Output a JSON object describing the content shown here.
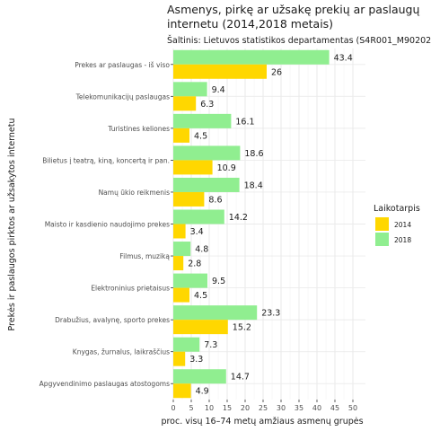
{
  "chart_data": {
    "type": "bar",
    "orientation": "horizontal",
    "title_lines": [
      "Asmenys, pirkę ar užsakę prekių ar paslaugų",
      "internetu (2014,2018 metais)"
    ],
    "subtitle": "Šaltinis: Lietuvos statistikos departamentas (S4R001_M90202",
    "xlabel": "proc. visų 16–74 metų amžiaus asmenų grupės",
    "ylabel": "Prekės ir paslaugos pirktos ar užsakytos internetu",
    "xlim": [
      0,
      52
    ],
    "xticks": [
      0,
      5,
      10,
      15,
      20,
      25,
      30,
      35,
      40,
      45,
      50
    ],
    "grid": true,
    "legend": {
      "title": "Laikotarpis",
      "position": "right"
    },
    "categories": [
      "Prekes ar paslaugas - iš viso",
      "Telekomunikacijų paslaugas",
      "Turistines keliones",
      "Bilietus į teatrą, kiną, koncertą ir pan.",
      "Namų ūkio reikmenis",
      "Maisto ir kasdienio naudojimo prekes",
      "Filmus, muziką",
      "Elektroninius prietaisus",
      "Drabužius, avalynę, sporto prekes",
      "Knygas, žurnalus, laikraščius",
      "Apgyvendinimo paslaugas atostogoms"
    ],
    "series": [
      {
        "name": "2014",
        "color": "#FFD700",
        "values": [
          26,
          6.3,
          4.5,
          10.9,
          8.6,
          3.4,
          2.8,
          4.5,
          15.2,
          3.3,
          4.9
        ]
      },
      {
        "name": "2018",
        "color": "#90EE90",
        "values": [
          43.4,
          9.4,
          16.1,
          18.6,
          18.4,
          14.2,
          4.8,
          9.5,
          23.3,
          7.3,
          14.7
        ]
      }
    ]
  }
}
